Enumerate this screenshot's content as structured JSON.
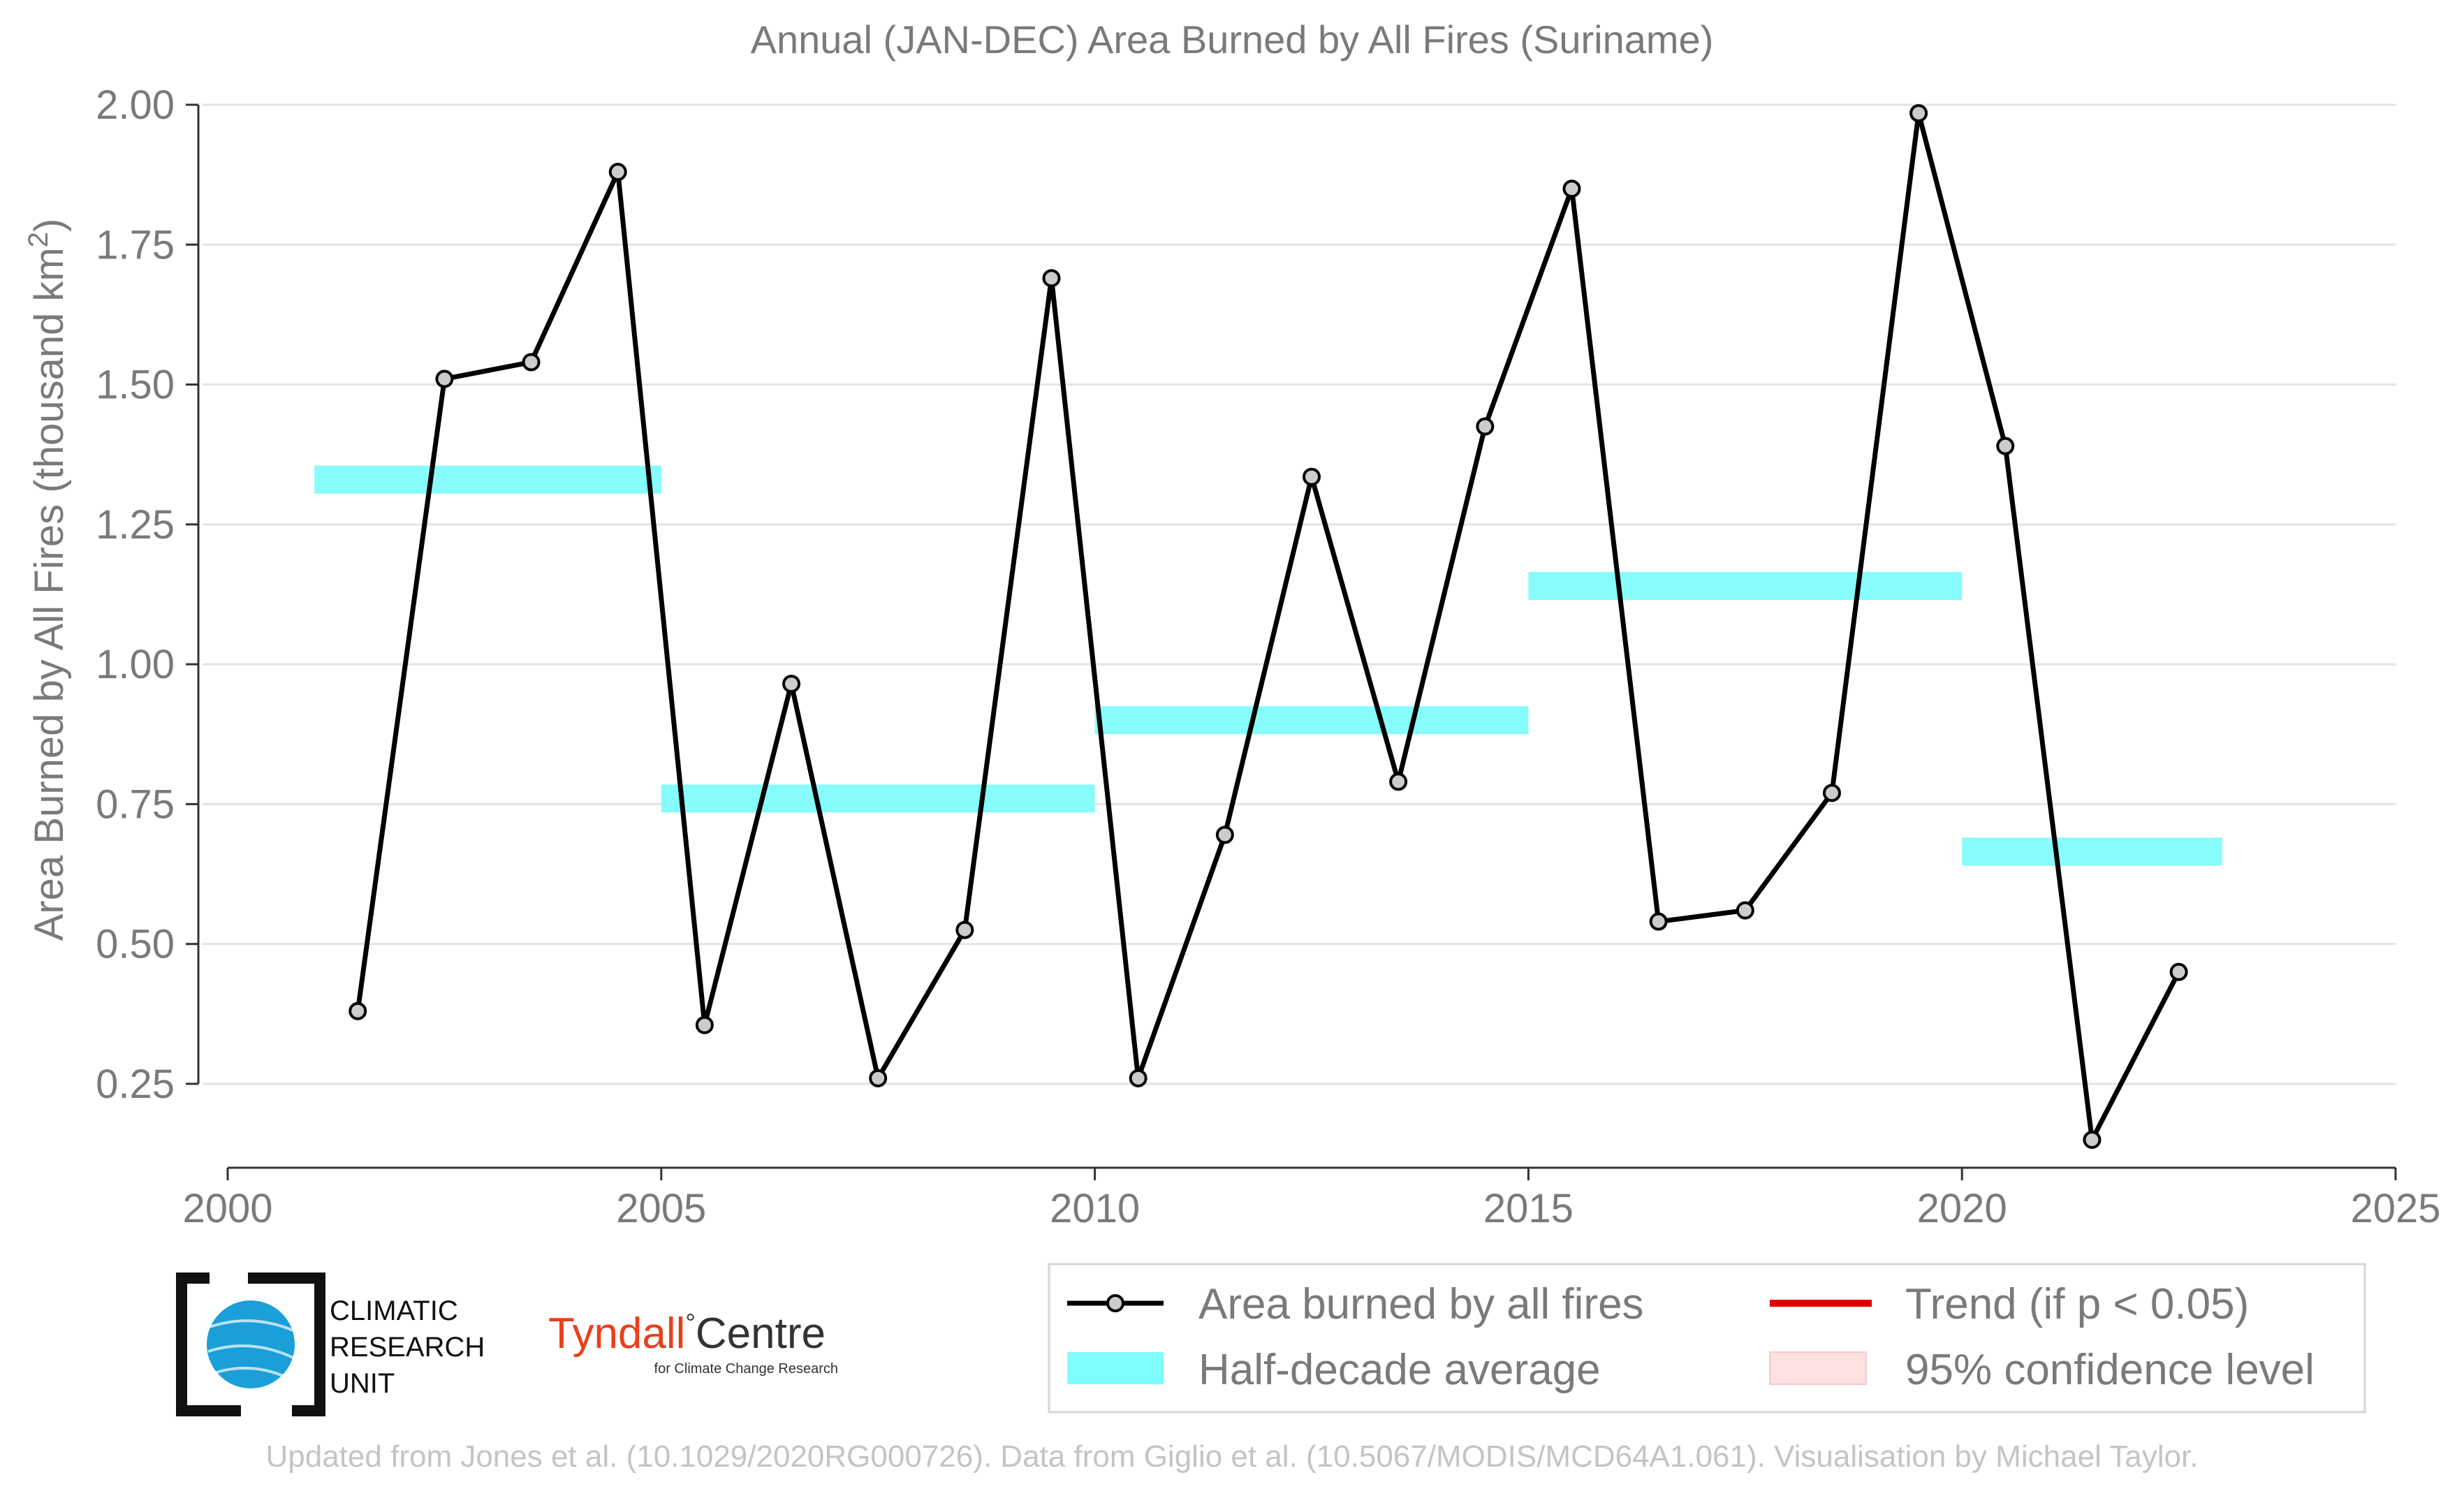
{
  "chart_data": {
    "type": "line",
    "title": "Annual (JAN-DEC) Area Burned by All Fires (Suriname)",
    "ylabel": "Area Burned by All Fires (thousand km",
    "ylabel_superscript": "2",
    "ylabel_suffix": ")",
    "xlabel": "",
    "xlim": [
      2000,
      2025
    ],
    "ylim": [
      0.1,
      2.05
    ],
    "x_ticks": [
      2000,
      2005,
      2010,
      2015,
      2020,
      2025
    ],
    "y_ticks": [
      0.25,
      0.5,
      0.75,
      1.0,
      1.25,
      1.5,
      1.75,
      2.0
    ],
    "y_tick_labels": [
      "0.25",
      "0.50",
      "0.75",
      "1.00",
      "1.25",
      "1.50",
      "1.75",
      "2.00"
    ],
    "grid": "horizontal",
    "legend_position": "bottom-right",
    "series": [
      {
        "name": "Area burned by all fires",
        "color": "#000000",
        "marker_fill": "#cccccc",
        "x": [
          2001.5,
          2002.5,
          2003.5,
          2004.5,
          2005.5,
          2006.5,
          2007.5,
          2008.5,
          2009.5,
          2010.5,
          2011.5,
          2012.5,
          2013.5,
          2014.5,
          2015.5,
          2016.5,
          2017.5,
          2018.5,
          2019.5,
          2020.5,
          2021.5,
          2022.5
        ],
        "y": [
          0.38,
          1.51,
          1.54,
          1.88,
          0.355,
          0.965,
          0.26,
          0.525,
          1.69,
          0.26,
          0.695,
          1.335,
          0.79,
          1.425,
          1.85,
          0.54,
          0.56,
          0.77,
          1.985,
          1.39,
          0.15,
          0.45
        ]
      }
    ],
    "half_decade_averages": {
      "name": "Half-decade average",
      "color": "#7ffcfc",
      "segments": [
        {
          "x_start": 2001,
          "x_end": 2005,
          "y": 1.33
        },
        {
          "x_start": 2005,
          "x_end": 2010,
          "y": 0.76
        },
        {
          "x_start": 2010,
          "x_end": 2015,
          "y": 0.9
        },
        {
          "x_start": 2015,
          "x_end": 2020,
          "y": 1.14
        },
        {
          "x_start": 2020,
          "x_end": 2023,
          "y": 0.665
        }
      ]
    },
    "legend": [
      {
        "label": "Area burned by all fires",
        "kind": "line-marker",
        "color": "#000000"
      },
      {
        "label": "Trend (if p < 0.05)",
        "kind": "line",
        "color": "#e00000"
      },
      {
        "label": "Half-decade average",
        "kind": "band",
        "color": "#7ffcfc"
      },
      {
        "label": "95% confidence level",
        "kind": "band",
        "color": "#fde0e0"
      }
    ]
  },
  "logos": {
    "cru_lines": [
      "CLIMATIC",
      "RESEARCH",
      "UNIT"
    ],
    "tyndall_main": "Tyndall",
    "tyndall_degree": "°",
    "tyndall_centre": "Centre",
    "tyndall_sub": "for Climate Change Research"
  },
  "footer": "Updated from Jones et al. (10.1029/2020RG000726). Data from Giglio et al. (10.5067/MODIS/MCD64A1.061). Visualisation by Michael Taylor."
}
